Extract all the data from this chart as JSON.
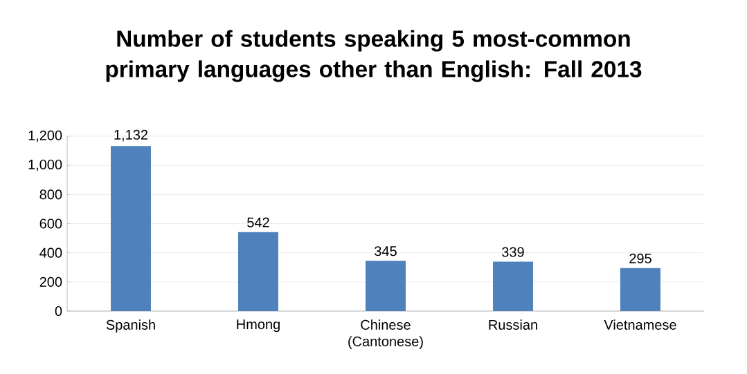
{
  "chart_data": {
    "type": "bar",
    "title": "Number of students speaking 5 most-common primary languages other than English: Fall 2013",
    "categories": [
      "Spanish",
      "Hmong",
      "Chinese (Cantonese)",
      "Russian",
      "Vietnamese"
    ],
    "values": [
      1132,
      542,
      345,
      339,
      295
    ],
    "value_labels": [
      "1,132",
      "542",
      "345",
      "339",
      "295"
    ],
    "color": "#4f81bd",
    "ylim": [
      0,
      1200
    ],
    "yticks": [
      0,
      200,
      400,
      600,
      800,
      {
        "value": 1000,
        "label": "1,000"
      },
      {
        "value": 1200,
        "label": "1,200"
      }
    ],
    "grid": "y"
  }
}
